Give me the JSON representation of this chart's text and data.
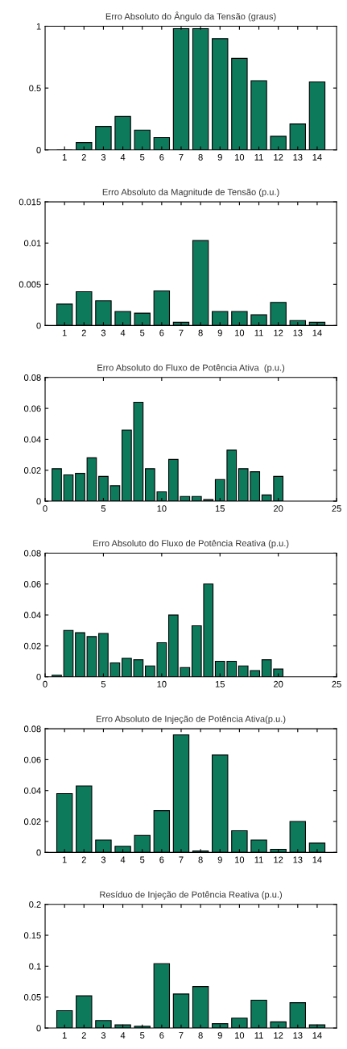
{
  "chart_data": [
    {
      "type": "bar",
      "title": "Erro Absoluto do Ângulo da Tensão (graus)",
      "categories": [
        "1",
        "2",
        "3",
        "4",
        "5",
        "6",
        "7",
        "8",
        "9",
        "10",
        "11",
        "12",
        "13",
        "14"
      ],
      "color": "#0d7a5c",
      "values": [
        0,
        0.06,
        0.19,
        0.27,
        0.16,
        0.1,
        0.98,
        0.98,
        0.9,
        0.74,
        0.56,
        0.11,
        0.21,
        0.55
      ],
      "ylim": [
        0,
        1
      ],
      "yticks": [
        0,
        0.5,
        1
      ],
      "grid": false
    },
    {
      "type": "bar",
      "title": "Erro Absoluto da Magnitude de Tensão (p.u.)",
      "categories": [
        "1",
        "2",
        "3",
        "4",
        "5",
        "6",
        "7",
        "8",
        "9",
        "10",
        "11",
        "12",
        "13",
        "14"
      ],
      "color": "#0d7a5c",
      "values": [
        0.0026,
        0.0041,
        0.003,
        0.0017,
        0.0015,
        0.0042,
        0.0004,
        0.0103,
        0.0017,
        0.0017,
        0.0013,
        0.0028,
        0.0006,
        0.0004
      ],
      "ylim": [
        0,
        0.015
      ],
      "yticks": [
        0,
        0.005,
        0.01,
        0.015
      ],
      "grid": false
    },
    {
      "type": "bar",
      "title": "Erro Absoluto do Fluxo de Potência Ativa  (p.u.)",
      "x": [
        1,
        2,
        3,
        4,
        5,
        6,
        7,
        8,
        9,
        10,
        11,
        12,
        13,
        14,
        15,
        16,
        17,
        18,
        19,
        20
      ],
      "color": "#0d7a5c",
      "values": [
        0.021,
        0.017,
        0.018,
        0.028,
        0.016,
        0.01,
        0.046,
        0.064,
        0.021,
        0.006,
        0.027,
        0.003,
        0.003,
        0.001,
        0.014,
        0.033,
        0.021,
        0.019,
        0.004,
        0.016
      ],
      "xlim": [
        0,
        25
      ],
      "xticks": [
        0,
        5,
        10,
        15,
        20,
        25
      ],
      "ylim": [
        0,
        0.08
      ],
      "yticks": [
        0,
        0.02,
        0.04,
        0.06,
        0.08
      ],
      "grid": false
    },
    {
      "type": "bar",
      "title": "Erro Absoluto do Fluxo de Potência Reativa (p.u.)",
      "x": [
        1,
        2,
        3,
        4,
        5,
        6,
        7,
        8,
        9,
        10,
        11,
        12,
        13,
        14,
        15,
        16,
        17,
        18,
        19,
        20
      ],
      "color": "#0d7a5c",
      "values": [
        0.001,
        0.03,
        0.0285,
        0.026,
        0.028,
        0.009,
        0.012,
        0.011,
        0.007,
        0.022,
        0.04,
        0.006,
        0.033,
        0.06,
        0.01,
        0.01,
        0.007,
        0.004,
        0.011,
        0.005
      ],
      "xlim": [
        0,
        25
      ],
      "xticks": [
        0,
        5,
        10,
        15,
        20,
        25
      ],
      "ylim": [
        0,
        0.08
      ],
      "yticks": [
        0,
        0.02,
        0.04,
        0.06,
        0.08
      ],
      "grid": false
    },
    {
      "type": "bar",
      "title": "Erro Absoluto de Injeção de Potência Ativa(p.u.)",
      "categories": [
        "1",
        "2",
        "3",
        "4",
        "5",
        "6",
        "7",
        "8",
        "9",
        "10",
        "11",
        "12",
        "13",
        "14"
      ],
      "color": "#0d7a5c",
      "values": [
        0.038,
        0.043,
        0.008,
        0.004,
        0.011,
        0.027,
        0.076,
        0.001,
        0.063,
        0.014,
        0.008,
        0.002,
        0.02,
        0.006
      ],
      "ylim": [
        0,
        0.08
      ],
      "yticks": [
        0,
        0.02,
        0.04,
        0.06,
        0.08
      ],
      "grid": false
    },
    {
      "type": "bar",
      "title": "Resíduo de Injeção de Potência Reativa (p.u.)",
      "categories": [
        "1",
        "2",
        "3",
        "4",
        "5",
        "6",
        "7",
        "8",
        "9",
        "10",
        "11",
        "12",
        "13",
        "14"
      ],
      "color": "#0d7a5c",
      "values": [
        0.028,
        0.052,
        0.012,
        0.005,
        0.003,
        0.104,
        0.055,
        0.067,
        0.007,
        0.016,
        0.045,
        0.01,
        0.041,
        0.005
      ],
      "ylim": [
        0,
        0.2
      ],
      "yticks": [
        0,
        0.05,
        0.1,
        0.15,
        0.2
      ],
      "grid": false
    }
  ]
}
